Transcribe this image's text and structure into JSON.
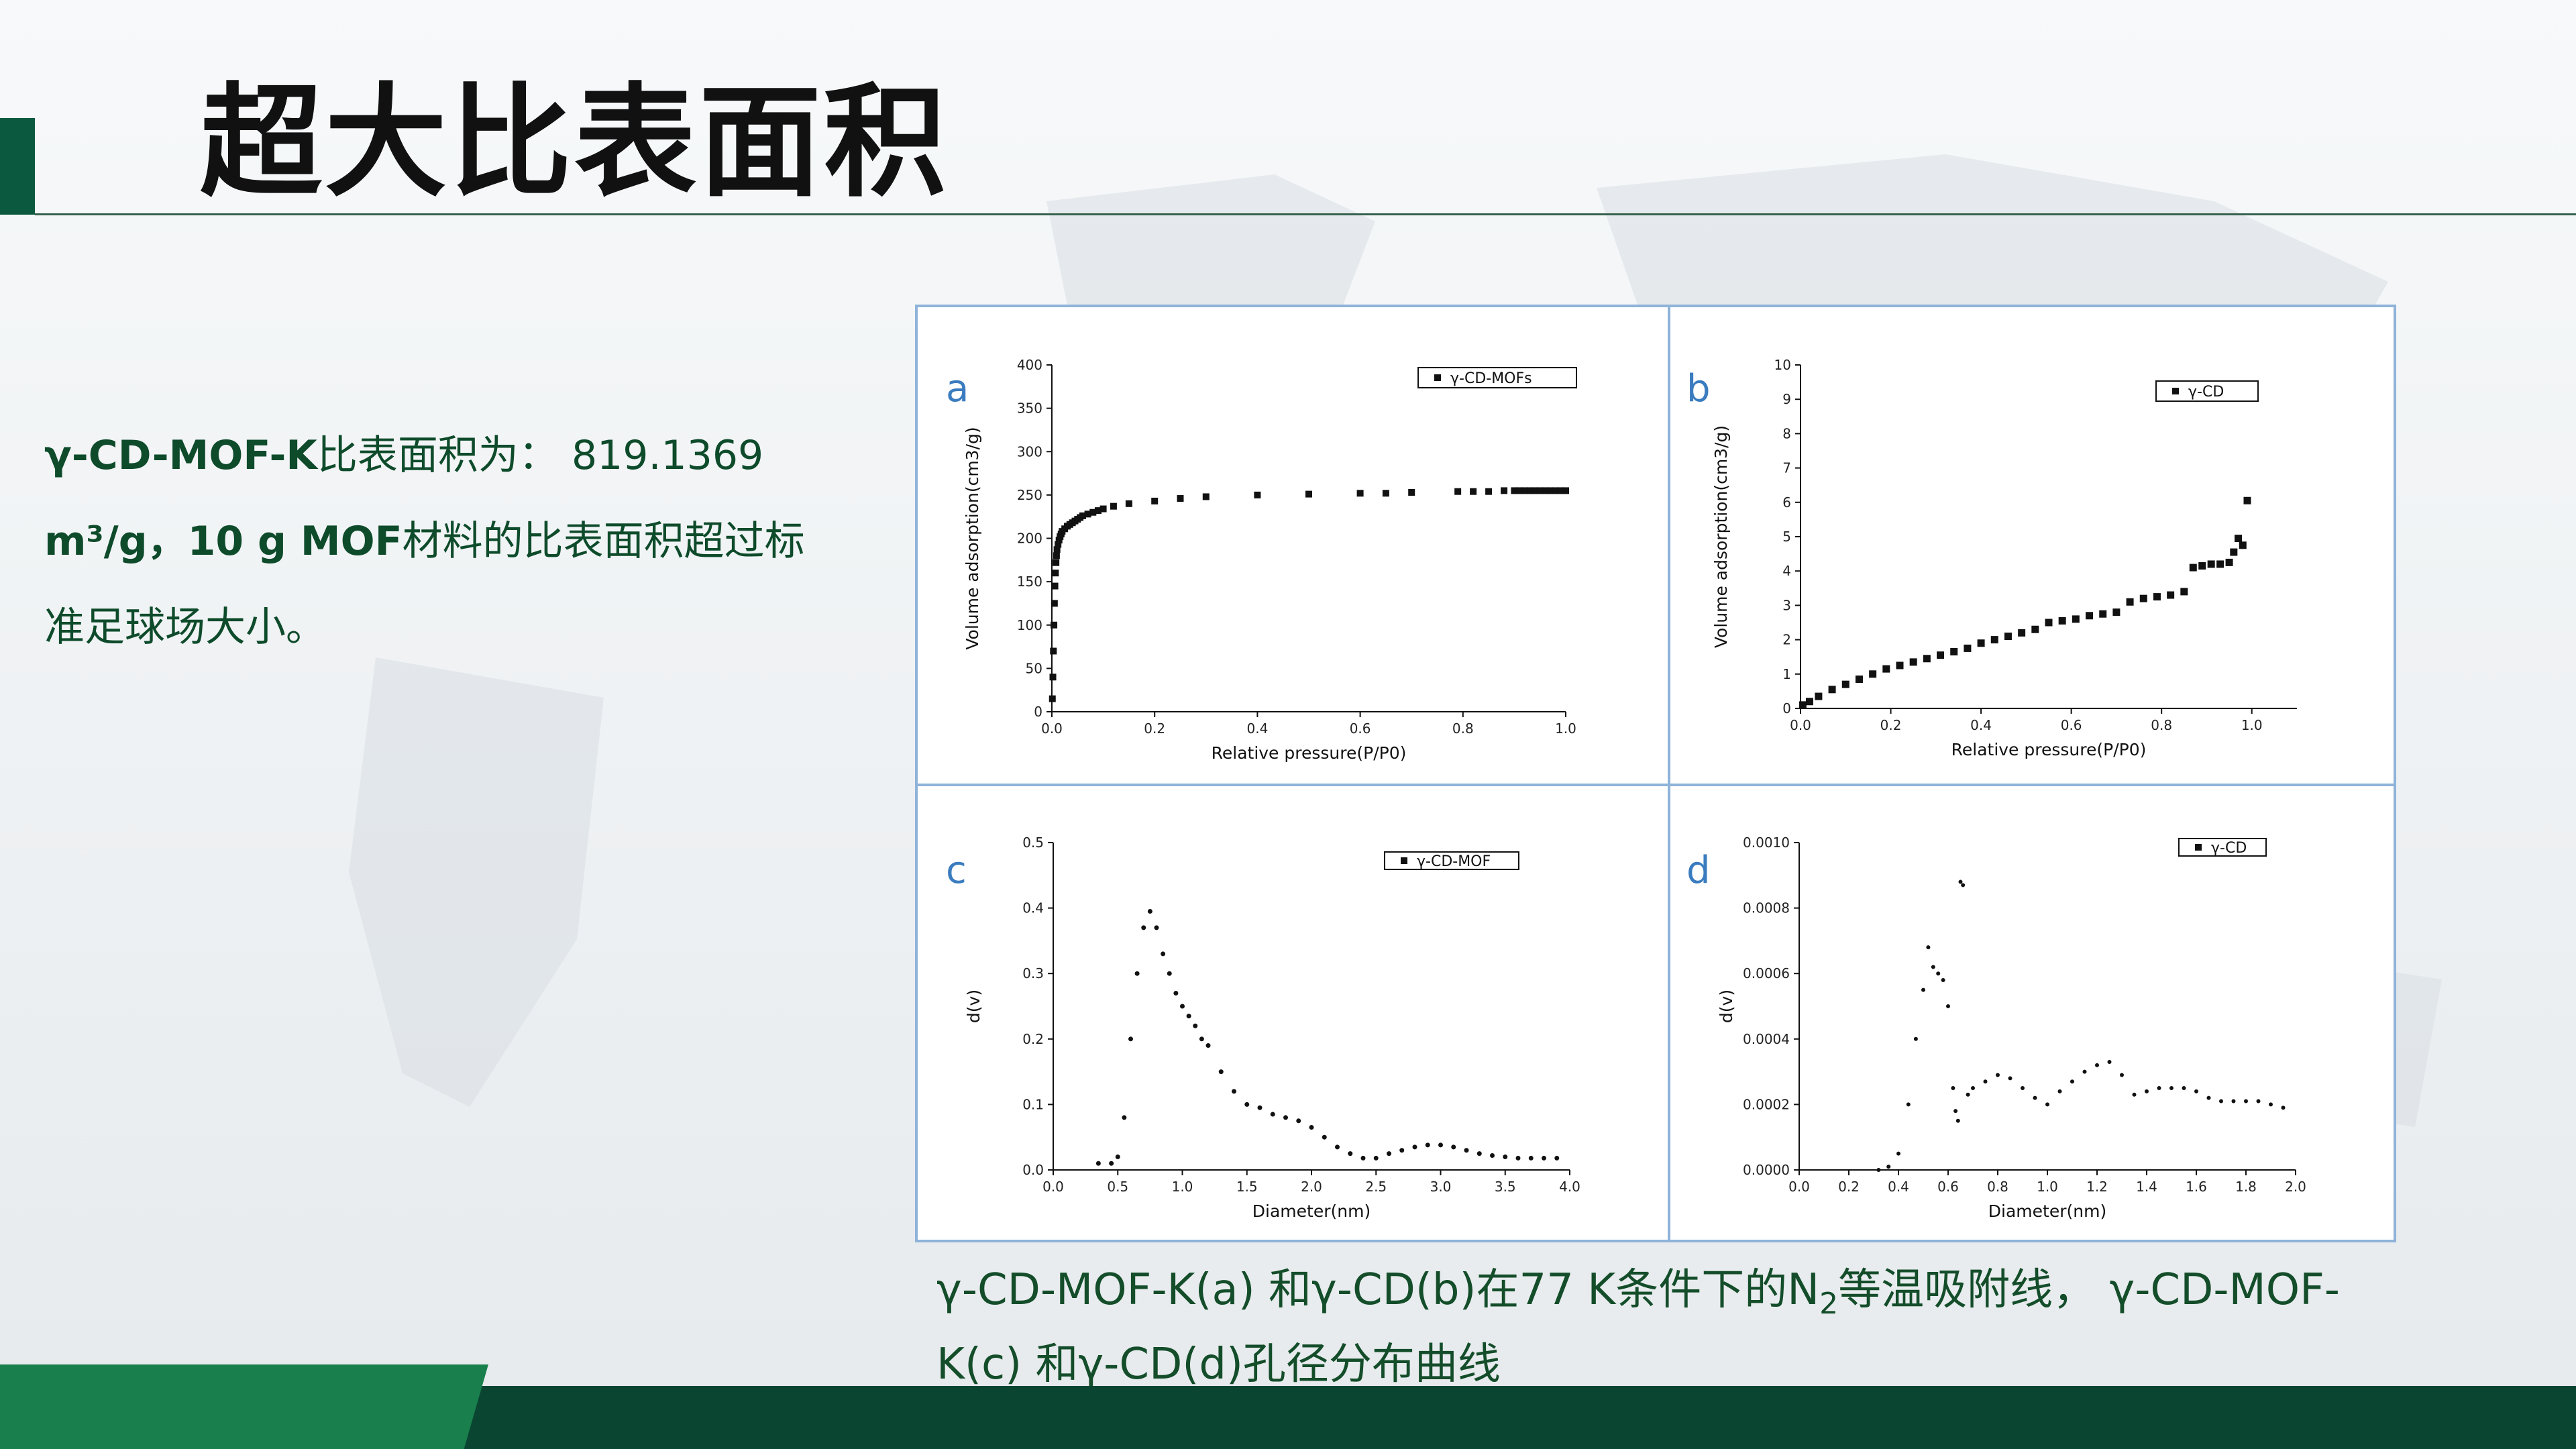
{
  "slide": {
    "title": "超大比表面积",
    "description": {
      "line1_material": "γ-CD-MOF-K",
      "line1_text": "比表面积为： 819.1369",
      "line2_bold": "m³/g，10 g MOF",
      "line2_text": "材料的比表面积超过标",
      "line3": "准足球场大小。"
    },
    "caption": {
      "part1": "γ-CD-MOF-K(a) 和γ-CD(b)在77 K条件下的N",
      "sub": "2",
      "part2": "等温吸附线， γ-CD-MOF-K(c) 和γ-CD(d)孔径分布曲线"
    }
  },
  "colors": {
    "title_text": "#111111",
    "body_text": "#0e4b2b",
    "caption_text": "#144d2a",
    "brand_green": "#0b5a3f",
    "footer": "#0a4532",
    "footer_accent": "#187f4d",
    "figure_border": "#8fb3d9",
    "panel_label": "#3a7cbf"
  },
  "chart_data": [
    {
      "panel": "a",
      "type": "scatter",
      "xlabel": "Relative pressure(P/P0)",
      "ylabel": "Volume adsorption(cm3/g)",
      "xlim": [
        0,
        1.0
      ],
      "ylim": [
        0,
        400
      ],
      "xticks": [
        "0.0",
        "0.2",
        "0.4",
        "0.6",
        "0.8",
        "1.0"
      ],
      "yticks": [
        "0",
        "50",
        "100",
        "150",
        "200",
        "250",
        "300",
        "350",
        "400"
      ],
      "legend": "γ-CD-MOFs",
      "series": [
        {
          "name": "γ-CD-MOFs",
          "x": [
            0.001,
            0.002,
            0.003,
            0.004,
            0.005,
            0.006,
            0.007,
            0.008,
            0.009,
            0.01,
            0.012,
            0.014,
            0.016,
            0.018,
            0.02,
            0.025,
            0.03,
            0.035,
            0.04,
            0.045,
            0.05,
            0.055,
            0.06,
            0.07,
            0.08,
            0.09,
            0.1,
            0.12,
            0.15,
            0.2,
            0.25,
            0.3,
            0.4,
            0.5,
            0.6,
            0.65,
            0.7,
            0.79,
            0.82,
            0.85,
            0.88,
            0.9,
            0.91,
            0.92,
            0.93,
            0.94,
            0.95,
            0.96,
            0.97,
            0.98,
            0.99,
            1.0
          ],
          "y": [
            15,
            40,
            70,
            100,
            125,
            145,
            160,
            172,
            180,
            187,
            193,
            198,
            202,
            205,
            208,
            211,
            214,
            216,
            218,
            220,
            222,
            224,
            226,
            228,
            230,
            232,
            234,
            237,
            240,
            243,
            246,
            248,
            250,
            251,
            252,
            252,
            253,
            254,
            254,
            254,
            255,
            255,
            255,
            255,
            255,
            255,
            255,
            255,
            255,
            255,
            255,
            255
          ]
        }
      ]
    },
    {
      "panel": "b",
      "type": "scatter",
      "xlabel": "Relative pressure(P/P0)",
      "ylabel": "Volume adsorption(cm3/g)",
      "xlim": [
        0,
        1.1
      ],
      "ylim": [
        0,
        10
      ],
      "xticks": [
        "0.0",
        "0.2",
        "0.4",
        "0.6",
        "0.8",
        "1.0"
      ],
      "yticks": [
        "0",
        "1",
        "2",
        "3",
        "4",
        "5",
        "6",
        "7",
        "8",
        "9",
        "10"
      ],
      "legend": "γ-CD",
      "series": [
        {
          "name": "γ-CD",
          "x": [
            0.005,
            0.02,
            0.04,
            0.07,
            0.1,
            0.13,
            0.16,
            0.19,
            0.22,
            0.25,
            0.28,
            0.31,
            0.34,
            0.37,
            0.4,
            0.43,
            0.46,
            0.49,
            0.52,
            0.55,
            0.58,
            0.61,
            0.64,
            0.67,
            0.7,
            0.73,
            0.76,
            0.79,
            0.82,
            0.85,
            0.87,
            0.89,
            0.91,
            0.93,
            0.95,
            0.96,
            0.97,
            0.98,
            0.99
          ],
          "y": [
            0.1,
            0.2,
            0.35,
            0.55,
            0.7,
            0.85,
            1.0,
            1.15,
            1.25,
            1.35,
            1.45,
            1.55,
            1.65,
            1.75,
            1.9,
            2.0,
            2.1,
            2.2,
            2.3,
            2.5,
            2.55,
            2.6,
            2.7,
            2.75,
            2.8,
            3.1,
            3.2,
            3.25,
            3.3,
            3.4,
            4.1,
            4.15,
            4.2,
            4.2,
            4.25,
            4.55,
            4.95,
            4.75,
            6.05
          ]
        }
      ]
    },
    {
      "panel": "c",
      "type": "scatter",
      "xlabel": "Diameter(nm)",
      "ylabel": "d(v)",
      "xlim": [
        0,
        4.0
      ],
      "ylim": [
        0,
        0.5
      ],
      "xticks": [
        "0.0",
        "0.5",
        "1.0",
        "1.5",
        "2.0",
        "2.5",
        "3.0",
        "3.5",
        "4.0"
      ],
      "yticks": [
        "0.0",
        "0.1",
        "0.2",
        "0.3",
        "0.4",
        "0.5"
      ],
      "legend": "γ-CD-MOF",
      "series": [
        {
          "name": "γ-CD-MOF",
          "x": [
            0.35,
            0.45,
            0.5,
            0.55,
            0.6,
            0.65,
            0.7,
            0.75,
            0.8,
            0.85,
            0.9,
            0.95,
            1.0,
            1.05,
            1.1,
            1.15,
            1.2,
            1.3,
            1.4,
            1.5,
            1.6,
            1.7,
            1.8,
            1.9,
            2.0,
            2.1,
            2.2,
            2.3,
            2.4,
            2.5,
            2.6,
            2.7,
            2.8,
            2.9,
            3.0,
            3.1,
            3.2,
            3.3,
            3.4,
            3.5,
            3.6,
            3.7,
            3.8,
            3.9
          ],
          "y": [
            0.01,
            0.01,
            0.02,
            0.08,
            0.2,
            0.3,
            0.37,
            0.395,
            0.37,
            0.33,
            0.3,
            0.27,
            0.25,
            0.235,
            0.22,
            0.2,
            0.19,
            0.15,
            0.12,
            0.1,
            0.095,
            0.085,
            0.08,
            0.075,
            0.065,
            0.05,
            0.035,
            0.025,
            0.018,
            0.018,
            0.025,
            0.03,
            0.035,
            0.038,
            0.038,
            0.035,
            0.03,
            0.025,
            0.022,
            0.02,
            0.018,
            0.018,
            0.018,
            0.018
          ]
        }
      ]
    },
    {
      "panel": "d",
      "type": "scatter",
      "xlabel": "Diameter(nm)",
      "ylabel": "d(v)",
      "xlim": [
        0,
        2.0
      ],
      "ylim": [
        0,
        0.001
      ],
      "xticks": [
        "0.0",
        "0.2",
        "0.4",
        "0.6",
        "0.8",
        "1.0",
        "1.2",
        "1.4",
        "1.6",
        "1.8",
        "2.0"
      ],
      "yticks": [
        "0.0000",
        "0.0002",
        "0.0004",
        "0.0006",
        "0.0008",
        "0.0010"
      ],
      "legend": "γ-CD",
      "series": [
        {
          "name": "γ-CD",
          "x": [
            0.32,
            0.36,
            0.4,
            0.44,
            0.47,
            0.5,
            0.52,
            0.54,
            0.56,
            0.58,
            0.6,
            0.62,
            0.63,
            0.64,
            0.65,
            0.66,
            0.68,
            0.7,
            0.75,
            0.8,
            0.85,
            0.9,
            0.95,
            1.0,
            1.05,
            1.1,
            1.15,
            1.2,
            1.25,
            1.3,
            1.35,
            1.4,
            1.45,
            1.5,
            1.55,
            1.6,
            1.65,
            1.7,
            1.75,
            1.8,
            1.85,
            1.9,
            1.95
          ],
          "y": [
            0.0,
            1e-05,
            5e-05,
            0.0002,
            0.0004,
            0.00055,
            0.00068,
            0.00062,
            0.0006,
            0.00058,
            0.0005,
            0.00025,
            0.00018,
            0.00015,
            0.00088,
            0.00087,
            0.00023,
            0.00025,
            0.00027,
            0.00029,
            0.00028,
            0.00025,
            0.00022,
            0.0002,
            0.00024,
            0.00027,
            0.0003,
            0.00032,
            0.00033,
            0.00029,
            0.00023,
            0.00024,
            0.00025,
            0.00025,
            0.00025,
            0.00024,
            0.00022,
            0.00021,
            0.00021,
            0.00021,
            0.00021,
            0.0002,
            0.00019
          ]
        }
      ]
    }
  ]
}
